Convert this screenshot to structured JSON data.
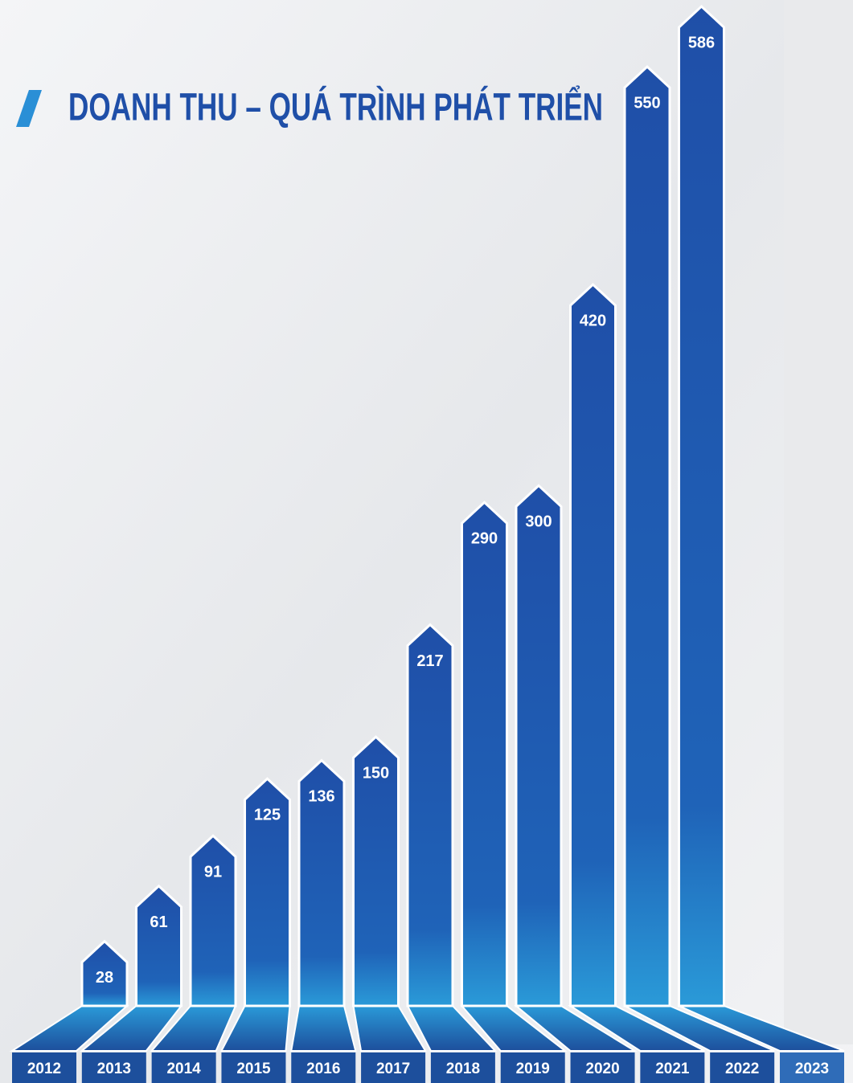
{
  "chart_data": {
    "type": "bar",
    "title": "DOANH THU – QUÁ TRÌNH PHÁT TRIỂN",
    "categories": [
      "2012",
      "2013",
      "2014",
      "2015",
      "2016",
      "2017",
      "2018",
      "2019",
      "2020",
      "2021",
      "2022",
      "2023"
    ],
    "values": [
      28,
      61,
      91,
      125,
      136,
      150,
      217,
      290,
      300,
      420,
      550,
      586
    ],
    "color": "#1f5fb5"
  }
}
